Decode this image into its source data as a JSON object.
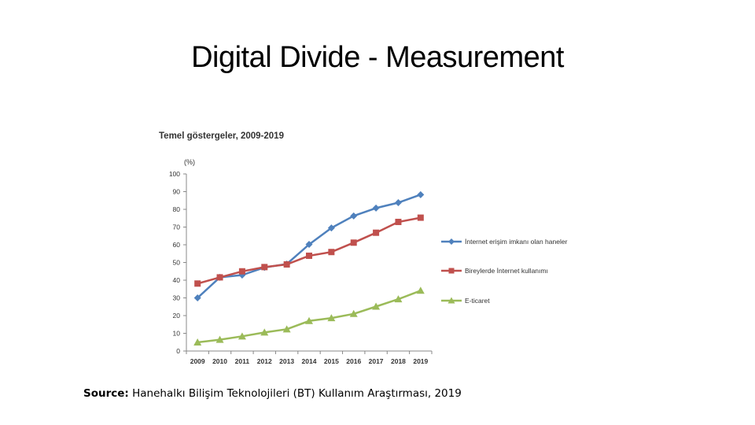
{
  "slide": {
    "title": "Digital Divide - Measurement",
    "source_label": "Source:",
    "source_text": " Hanehalkı Bilişim Teknolojileri (BT) Kullanım Araştırması, 2019"
  },
  "chart_data": {
    "type": "line",
    "title": "Temel göstergeler, 2009-2019",
    "ylabel": "(%)",
    "xlabel": "",
    "ylim": [
      0,
      100
    ],
    "yticks": [
      0,
      10,
      20,
      30,
      40,
      50,
      60,
      70,
      80,
      90,
      100
    ],
    "categories": [
      "2009",
      "2010",
      "2011",
      "2012",
      "2013",
      "2014",
      "2015",
      "2016",
      "2017",
      "2018",
      "2019"
    ],
    "grid": false,
    "legend_position": "right",
    "series": [
      {
        "name": "İnternet erişim imkanı olan haneler",
        "color": "#4f81bd",
        "marker": "diamond",
        "values": [
          30,
          41.6,
          42.9,
          47.2,
          49.1,
          60.2,
          69.5,
          76.3,
          80.7,
          83.8,
          88.3
        ]
      },
      {
        "name": "Bireylerde İnternet kullanımı",
        "color": "#c0504d",
        "marker": "square",
        "values": [
          38.1,
          41.6,
          45.0,
          47.4,
          48.9,
          53.8,
          55.9,
          61.2,
          66.8,
          72.9,
          75.3
        ]
      },
      {
        "name": "E-ticaret",
        "color": "#9bbb59",
        "marker": "triangle",
        "values": [
          4.9,
          6.4,
          8.3,
          10.5,
          12.3,
          17.0,
          18.6,
          21.0,
          25.1,
          29.3,
          34.1
        ]
      }
    ]
  }
}
